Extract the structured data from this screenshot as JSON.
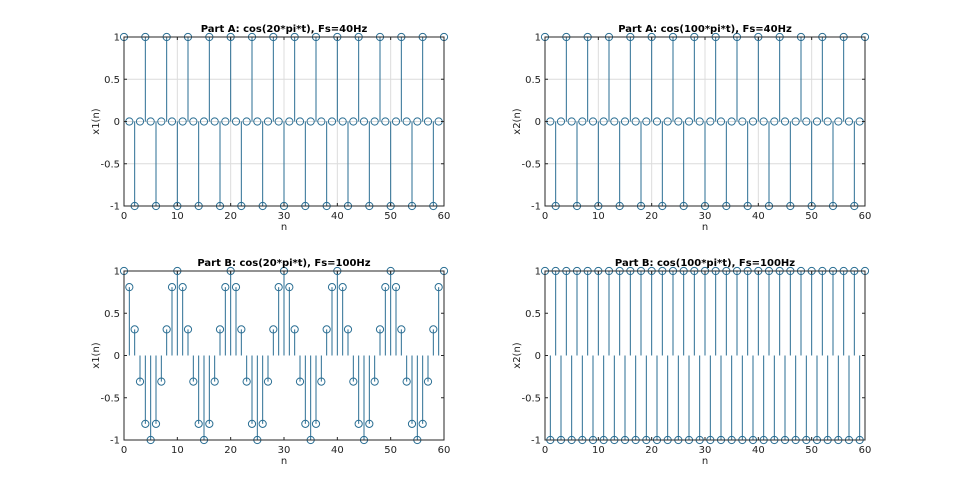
{
  "colors": {
    "stem": "#2a6e93",
    "axes": "#262626",
    "grid": "#dcdcdc",
    "background": "#ffffff"
  },
  "chart_data": [
    {
      "type": "stem",
      "title": "Part A: cos(20*pi*t), Fs=40Hz",
      "xlabel": "n",
      "ylabel": "x1(n)",
      "xlim": [
        0,
        60
      ],
      "ylim": [
        -1,
        1
      ],
      "grid": true,
      "x_ticks": [
        "0",
        "10",
        "20",
        "30",
        "40",
        "50",
        "60"
      ],
      "y_ticks": [
        "1",
        "0.5",
        "0",
        "-0.5",
        "-1"
      ],
      "x": [
        0,
        1,
        2,
        3,
        4,
        5,
        6,
        7,
        8,
        9,
        10,
        11,
        12,
        13,
        14,
        15,
        16,
        17,
        18,
        19,
        20,
        21,
        22,
        23,
        24,
        25,
        26,
        27,
        28,
        29,
        30,
        31,
        32,
        33,
        34,
        35,
        36,
        37,
        38,
        39,
        40,
        41,
        42,
        43,
        44,
        45,
        46,
        47,
        48,
        49,
        50,
        51,
        52,
        53,
        54,
        55,
        56,
        57,
        58,
        59,
        60
      ],
      "y": [
        1,
        0,
        -1,
        0,
        1,
        0,
        -1,
        0,
        1,
        0,
        -1,
        0,
        1,
        0,
        -1,
        0,
        1,
        0,
        -1,
        0,
        1,
        0,
        -1,
        0,
        1,
        0,
        -1,
        0,
        1,
        0,
        -1,
        0,
        1,
        0,
        -1,
        0,
        1,
        0,
        -1,
        0,
        1,
        0,
        -1,
        0,
        1,
        0,
        -1,
        0,
        1,
        0,
        -1,
        0,
        1,
        0,
        -1,
        0,
        1,
        0,
        -1,
        0,
        1
      ]
    },
    {
      "type": "stem",
      "title": "Part A: cos(100*pi*t), Fs=40Hz",
      "xlabel": "n",
      "ylabel": "x2(n)",
      "xlim": [
        0,
        60
      ],
      "ylim": [
        -1,
        1
      ],
      "grid": true,
      "x_ticks": [
        "0",
        "10",
        "20",
        "30",
        "40",
        "50",
        "60"
      ],
      "y_ticks": [
        "1",
        "0.5",
        "0",
        "-0.5",
        "-1"
      ],
      "x": [
        0,
        1,
        2,
        3,
        4,
        5,
        6,
        7,
        8,
        9,
        10,
        11,
        12,
        13,
        14,
        15,
        16,
        17,
        18,
        19,
        20,
        21,
        22,
        23,
        24,
        25,
        26,
        27,
        28,
        29,
        30,
        31,
        32,
        33,
        34,
        35,
        36,
        37,
        38,
        39,
        40,
        41,
        42,
        43,
        44,
        45,
        46,
        47,
        48,
        49,
        50,
        51,
        52,
        53,
        54,
        55,
        56,
        57,
        58,
        59,
        60
      ],
      "y": [
        1,
        0,
        -1,
        0,
        1,
        0,
        -1,
        0,
        1,
        0,
        -1,
        0,
        1,
        0,
        -1,
        0,
        1,
        0,
        -1,
        0,
        1,
        0,
        -1,
        0,
        1,
        0,
        -1,
        0,
        1,
        0,
        -1,
        0,
        1,
        0,
        -1,
        0,
        1,
        0,
        -1,
        0,
        1,
        0,
        -1,
        0,
        1,
        0,
        -1,
        0,
        1,
        0,
        -1,
        0,
        1,
        0,
        -1,
        0,
        1,
        0,
        -1,
        0,
        1
      ]
    },
    {
      "type": "stem",
      "title": "Part B: cos(20*pi*t), Fs=100Hz",
      "xlabel": "n",
      "ylabel": "x1(n)",
      "xlim": [
        0,
        60
      ],
      "ylim": [
        -1,
        1
      ],
      "grid": false,
      "x_ticks": [
        "0",
        "10",
        "20",
        "30",
        "40",
        "50",
        "60"
      ],
      "y_ticks": [
        "1",
        "0.5",
        "0",
        "-0.5",
        "-1"
      ],
      "x": [
        0,
        1,
        2,
        3,
        4,
        5,
        6,
        7,
        8,
        9,
        10,
        11,
        12,
        13,
        14,
        15,
        16,
        17,
        18,
        19,
        20,
        21,
        22,
        23,
        24,
        25,
        26,
        27,
        28,
        29,
        30,
        31,
        32,
        33,
        34,
        35,
        36,
        37,
        38,
        39,
        40,
        41,
        42,
        43,
        44,
        45,
        46,
        47,
        48,
        49,
        50,
        51,
        52,
        53,
        54,
        55,
        56,
        57,
        58,
        59,
        60
      ],
      "y": [
        1,
        0.809,
        0.309,
        -0.309,
        -0.809,
        -1,
        -0.809,
        -0.309,
        0.309,
        0.809,
        1,
        0.809,
        0.309,
        -0.309,
        -0.809,
        -1,
        -0.809,
        -0.309,
        0.309,
        0.809,
        1,
        0.809,
        0.309,
        -0.309,
        -0.809,
        -1,
        -0.809,
        -0.309,
        0.309,
        0.809,
        1,
        0.809,
        0.309,
        -0.309,
        -0.809,
        -1,
        -0.809,
        -0.309,
        0.309,
        0.809,
        1,
        0.809,
        0.309,
        -0.309,
        -0.809,
        -1,
        -0.809,
        -0.309,
        0.309,
        0.809,
        1,
        0.809,
        0.309,
        -0.309,
        -0.809,
        -1,
        -0.809,
        -0.309,
        0.309,
        0.809,
        1
      ]
    },
    {
      "type": "stem",
      "title": "Part B: cos(100*pi*t), Fs=100Hz",
      "xlabel": "n",
      "ylabel": "x2(n)",
      "xlim": [
        0,
        60
      ],
      "ylim": [
        -1,
        1
      ],
      "grid": false,
      "x_ticks": [
        "0",
        "10",
        "20",
        "30",
        "40",
        "50",
        "60"
      ],
      "y_ticks": [
        "1",
        "0.5",
        "0",
        "-0.5",
        "-1"
      ],
      "x": [
        0,
        1,
        2,
        3,
        4,
        5,
        6,
        7,
        8,
        9,
        10,
        11,
        12,
        13,
        14,
        15,
        16,
        17,
        18,
        19,
        20,
        21,
        22,
        23,
        24,
        25,
        26,
        27,
        28,
        29,
        30,
        31,
        32,
        33,
        34,
        35,
        36,
        37,
        38,
        39,
        40,
        41,
        42,
        43,
        44,
        45,
        46,
        47,
        48,
        49,
        50,
        51,
        52,
        53,
        54,
        55,
        56,
        57,
        58,
        59,
        60
      ],
      "y": [
        1,
        -1,
        1,
        -1,
        1,
        -1,
        1,
        -1,
        1,
        -1,
        1,
        -1,
        1,
        -1,
        1,
        -1,
        1,
        -1,
        1,
        -1,
        1,
        -1,
        1,
        -1,
        1,
        -1,
        1,
        -1,
        1,
        -1,
        1,
        -1,
        1,
        -1,
        1,
        -1,
        1,
        -1,
        1,
        -1,
        1,
        -1,
        1,
        -1,
        1,
        -1,
        1,
        -1,
        1,
        -1,
        1,
        -1,
        1,
        -1,
        1,
        -1,
        1,
        -1,
        1,
        -1,
        1
      ]
    }
  ]
}
